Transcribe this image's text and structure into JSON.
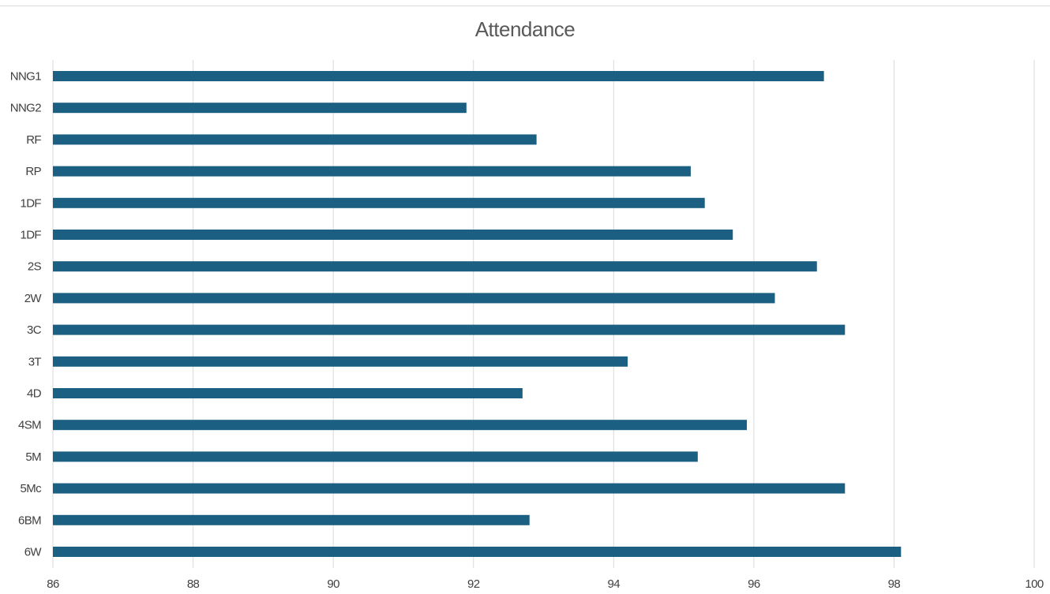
{
  "chart_data": {
    "type": "bar",
    "orientation": "horizontal",
    "title": "Attendance",
    "categories": [
      "NNG1",
      "NNG2",
      "RF",
      "RP",
      "1DF",
      "1DF",
      "2S",
      "2W",
      "3C",
      "3T",
      "4D",
      "4SM",
      "5M",
      "5Mc",
      "6BM",
      "6W"
    ],
    "series": [
      {
        "values": [
          97.0,
          91.9,
          92.9,
          95.1,
          95.3,
          95.7,
          96.9,
          96.3,
          97.3,
          94.2,
          92.7,
          95.9,
          95.2,
          97.3,
          92.8,
          98.1
        ]
      }
    ],
    "xlim": [
      86,
      100
    ],
    "x_ticks": [
      "86",
      "88",
      "90",
      "92",
      "94",
      "96",
      "98",
      "100"
    ],
    "grid": "vertical",
    "bar_color": "#1b5f82",
    "grid_color": "#d9d9d9"
  }
}
